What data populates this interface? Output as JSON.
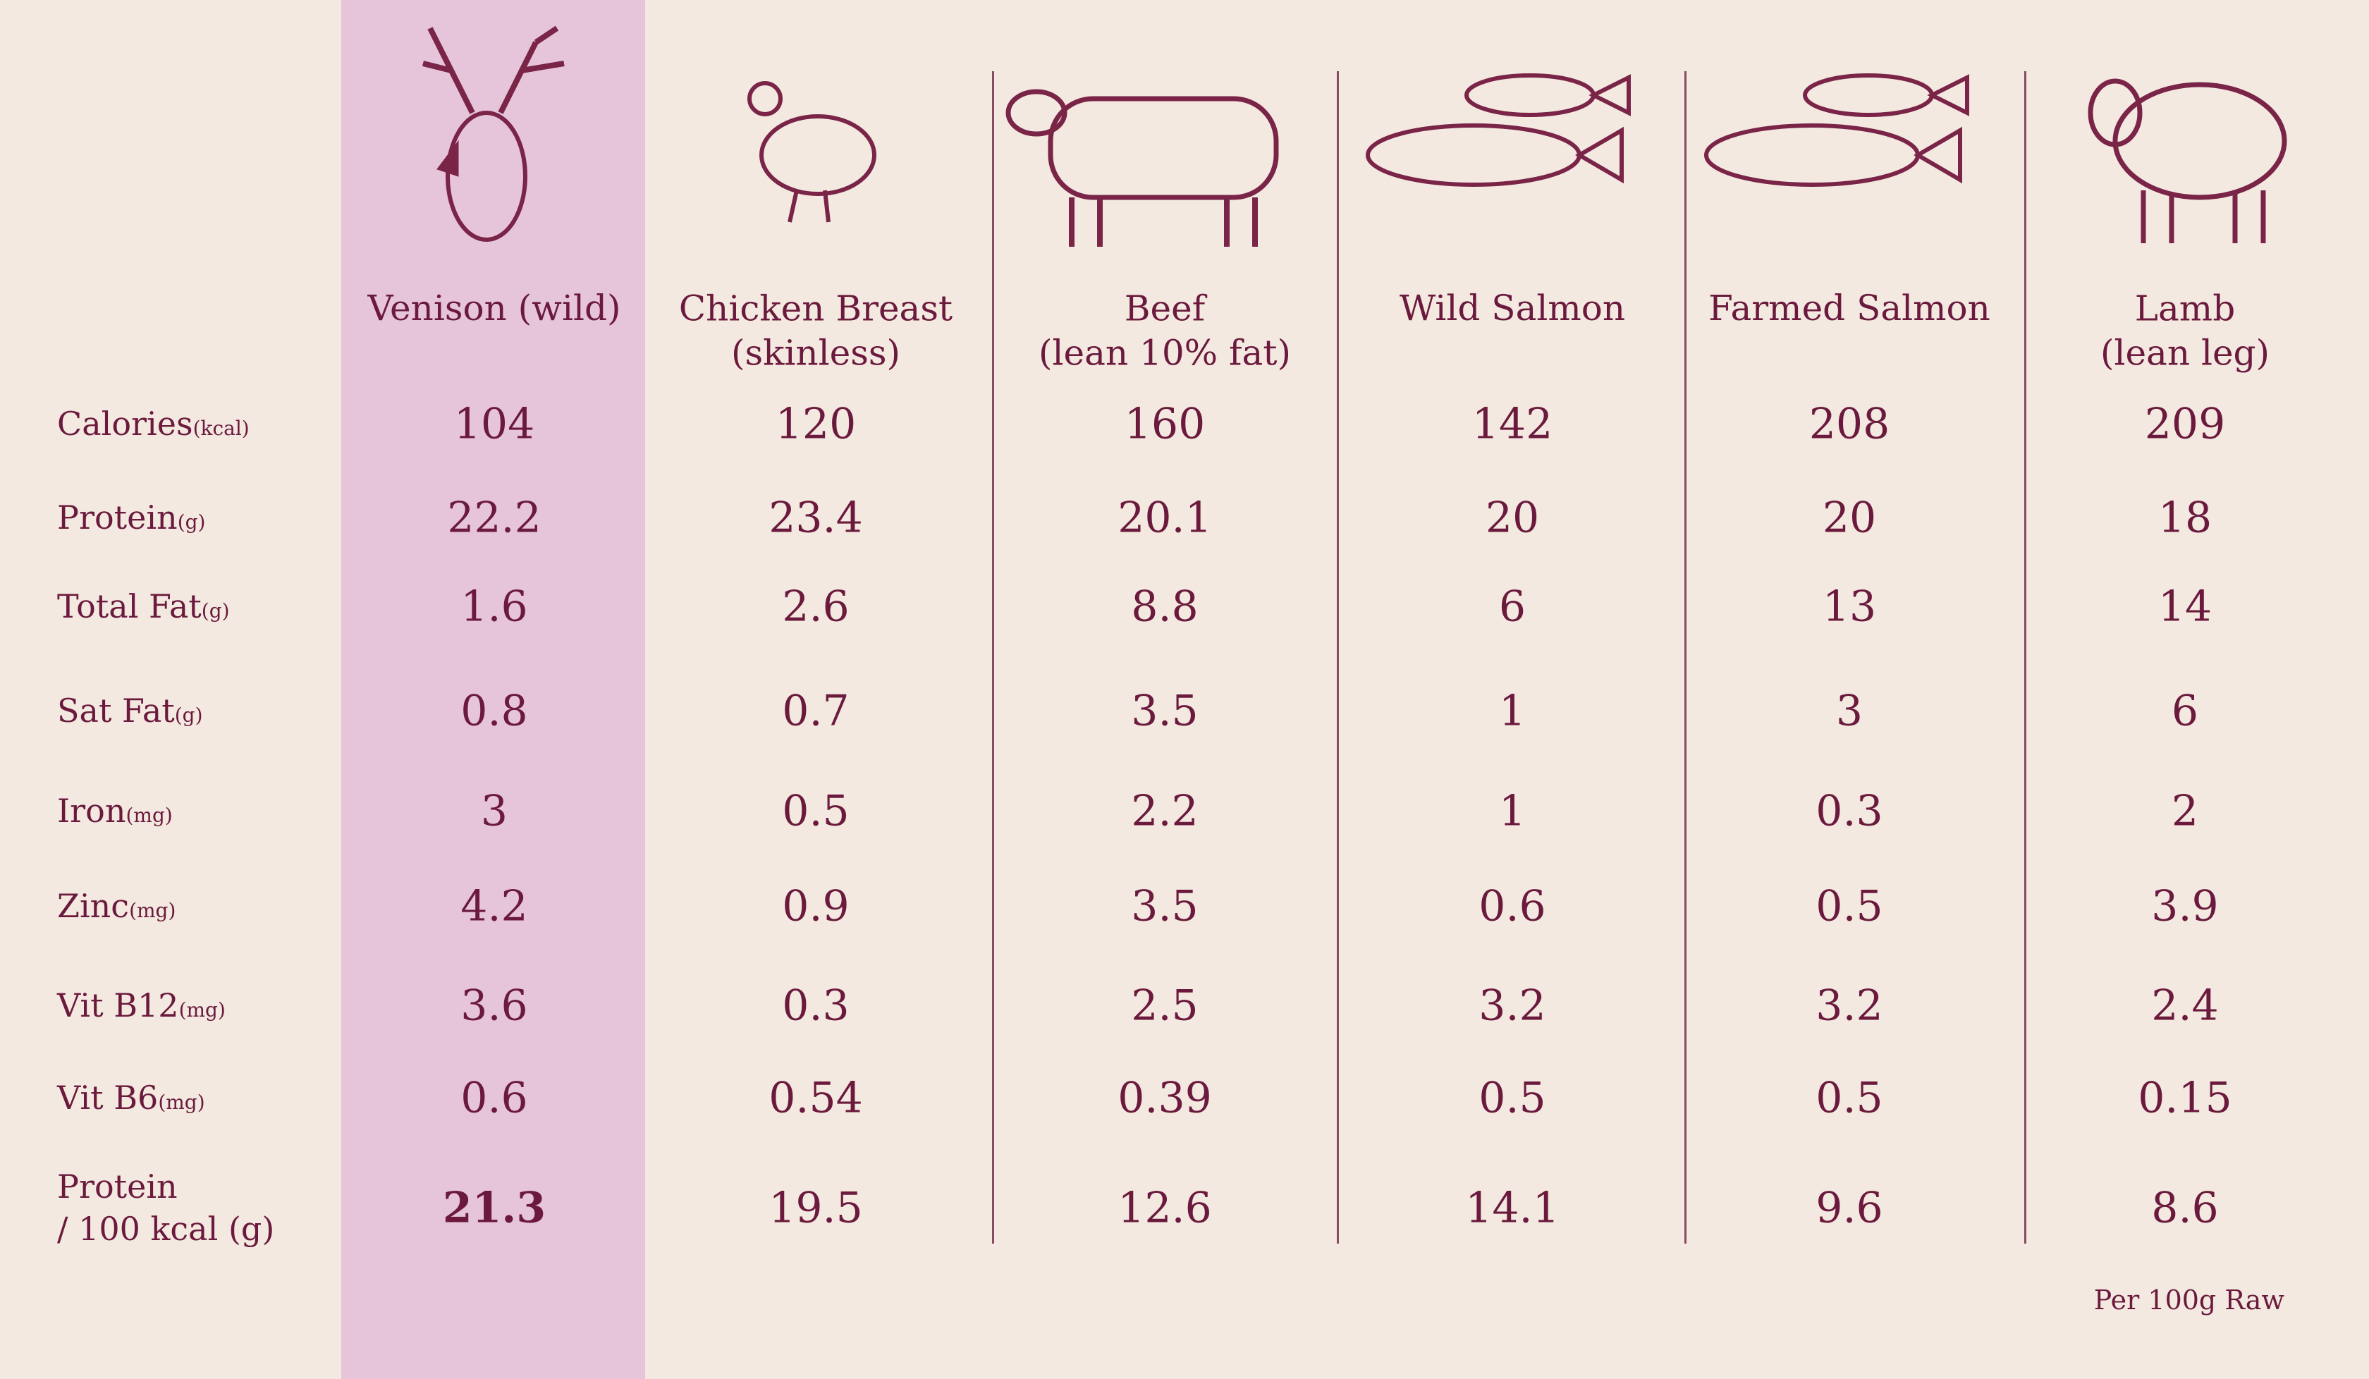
{
  "table": {
    "columns": [
      "Venison (wild)",
      "Chicken Breast\n(skinless)",
      "Beef\n(lean 10% fat)",
      "Wild Salmon",
      "Farmed Salmon",
      "Lamb\n(lean leg)"
    ],
    "rows": [
      {
        "label": "Calories",
        "unit": "(kcal)",
        "values": [
          104,
          120,
          160,
          142,
          208,
          209
        ]
      },
      {
        "label": "Protein",
        "unit": "(g)",
        "values": [
          22.2,
          23.4,
          20.1,
          20,
          20,
          18
        ]
      },
      {
        "label": "Total Fat",
        "unit": "(g)",
        "values": [
          1.6,
          2.6,
          8.8,
          6,
          13,
          14
        ]
      },
      {
        "label": "Sat Fat",
        "unit": "(g)",
        "values": [
          0.8,
          0.7,
          3.5,
          1,
          3,
          6
        ]
      },
      {
        "label": "Iron",
        "unit": "(mg)",
        "values": [
          3,
          0.5,
          2.2,
          1,
          0.3,
          2
        ]
      },
      {
        "label": "Zinc",
        "unit": "(mg)",
        "values": [
          4.2,
          0.9,
          3.5,
          0.6,
          0.5,
          3.9
        ]
      },
      {
        "label": "Vit B12",
        "unit": "(mg)",
        "values": [
          3.6,
          0.3,
          2.5,
          3.2,
          3.2,
          2.4
        ]
      },
      {
        "label": "Vit B6",
        "unit": "(mg)",
        "values": [
          0.6,
          0.54,
          0.39,
          0.5,
          0.5,
          0.15
        ]
      },
      {
        "label": "Protein\n/ 100 kcal (g)",
        "values": [
          21.3,
          19.5,
          12.6,
          14.1,
          9.6,
          8.6
        ]
      }
    ]
  },
  "footnote": "Per 100g Raw"
}
